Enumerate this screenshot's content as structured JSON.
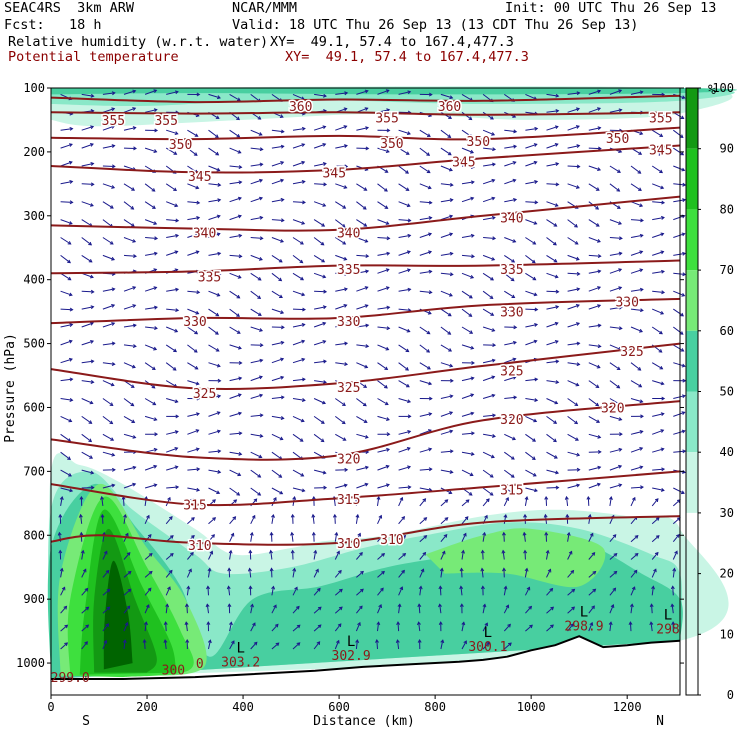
{
  "header": {
    "model": "SEAC4RS  3km ARW",
    "center": "NCAR/MMM",
    "init": "Init: 00 UTC Thu 26 Sep 13",
    "fcst": "Fcst:   18 h",
    "valid": "Valid: 18 UTC Thu 26 Sep 13 (13 CDT Thu 26 Sep 13)",
    "field1_name": "Relative humidity (w.r.t. water)",
    "field1_xy": "XY=  49.1, 57.4 to 167.4,477.3",
    "field2_name": "Potential temperature",
    "field2_xy": "XY=  49.1, 57.4 to 167.4,477.3"
  },
  "colors": {
    "theta_contour": "#8b1a1a",
    "wind_vector": "#1a1a8c",
    "terrain": "#000000"
  },
  "chart_data": {
    "type": "cross-section",
    "xlabel": "Distance (km)",
    "ylabel": "Pressure (hPa)",
    "xlim": [
      0,
      1310
    ],
    "ylim": [
      1050,
      100
    ],
    "x_ticks": [
      0,
      200,
      400,
      600,
      800,
      1000,
      1200
    ],
    "y_ticks": [
      100,
      200,
      300,
      400,
      500,
      600,
      700,
      800,
      900,
      1000
    ],
    "left_end_label": "S",
    "right_end_label": "N",
    "colorbar": {
      "unit": "%",
      "ticks": [
        100,
        90,
        80,
        70,
        60,
        50,
        40,
        30,
        20,
        10,
        0
      ],
      "levels": [
        100,
        90,
        80,
        70,
        60,
        50,
        40,
        30
      ],
      "colors": [
        "#006400",
        "#139913",
        "#1fc11f",
        "#3ee03e",
        "#77ea77",
        "#48cfa0",
        "#8ae8c8",
        "#c9f5e5"
      ]
    },
    "theta_isolines": [
      {
        "theta": 360,
        "points": [
          [
            0,
            115
          ],
          [
            300,
            122
          ],
          [
            600,
            118
          ],
          [
            900,
            120
          ],
          [
            1310,
            112
          ]
        ]
      },
      {
        "theta": 355,
        "points": [
          [
            0,
            138
          ],
          [
            300,
            140
          ],
          [
            600,
            138
          ],
          [
            900,
            142
          ],
          [
            1310,
            138
          ]
        ]
      },
      {
        "theta": 350,
        "points": [
          [
            0,
            178
          ],
          [
            300,
            180
          ],
          [
            600,
            175
          ],
          [
            900,
            180
          ],
          [
            1310,
            162
          ]
        ]
      },
      {
        "theta": 345,
        "points": [
          [
            0,
            222
          ],
          [
            300,
            232
          ],
          [
            600,
            228
          ],
          [
            900,
            210
          ],
          [
            1310,
            190
          ]
        ]
      },
      {
        "theta": 340,
        "points": [
          [
            0,
            315
          ],
          [
            300,
            320
          ],
          [
            600,
            322
          ],
          [
            900,
            300
          ],
          [
            1310,
            270
          ]
        ]
      },
      {
        "theta": 335,
        "points": [
          [
            0,
            390
          ],
          [
            300,
            387
          ],
          [
            600,
            378
          ],
          [
            900,
            378
          ],
          [
            1310,
            370
          ]
        ]
      },
      {
        "theta": 330,
        "points": [
          [
            0,
            468
          ],
          [
            300,
            460
          ],
          [
            600,
            460
          ],
          [
            900,
            440
          ],
          [
            1310,
            430
          ]
        ]
      },
      {
        "theta": 325,
        "points": [
          [
            0,
            540
          ],
          [
            300,
            570
          ],
          [
            600,
            562
          ],
          [
            900,
            535
          ],
          [
            1310,
            500
          ]
        ]
      },
      {
        "theta": 320,
        "points": [
          [
            0,
            650
          ],
          [
            300,
            678
          ],
          [
            600,
            675
          ],
          [
            900,
            620
          ],
          [
            1310,
            590
          ]
        ]
      },
      {
        "theta": 315,
        "points": [
          [
            0,
            720
          ],
          [
            300,
            752
          ],
          [
            600,
            742
          ],
          [
            900,
            725
          ],
          [
            1310,
            700
          ]
        ]
      },
      {
        "theta": 310,
        "points": [
          [
            0,
            810
          ],
          [
            100,
            800
          ],
          [
            300,
            812
          ],
          [
            600,
            812
          ],
          [
            900,
            780
          ],
          [
            1310,
            770
          ]
        ]
      }
    ],
    "isoline_labels": [
      {
        "text": "360",
        "x": 520,
        "y": 128
      },
      {
        "text": "360",
        "x": 830,
        "y": 128
      },
      {
        "text": "355",
        "x": 130,
        "y": 150
      },
      {
        "text": "355",
        "x": 240,
        "y": 150
      },
      {
        "text": "355",
        "x": 700,
        "y": 146
      },
      {
        "text": "355",
        "x": 1270,
        "y": 146
      },
      {
        "text": "350",
        "x": 270,
        "y": 188
      },
      {
        "text": "350",
        "x": 710,
        "y": 186
      },
      {
        "text": "350",
        "x": 890,
        "y": 183
      },
      {
        "text": "350",
        "x": 1180,
        "y": 178
      },
      {
        "text": "345",
        "x": 1270,
        "y": 196
      },
      {
        "text": "345",
        "x": 860,
        "y": 215
      },
      {
        "text": "345",
        "x": 310,
        "y": 238
      },
      {
        "text": "345",
        "x": 590,
        "y": 232
      },
      {
        "text": "340",
        "x": 320,
        "y": 326
      },
      {
        "text": "340",
        "x": 620,
        "y": 326
      },
      {
        "text": "340",
        "x": 960,
        "y": 303
      },
      {
        "text": "335",
        "x": 330,
        "y": 395
      },
      {
        "text": "335",
        "x": 620,
        "y": 383
      },
      {
        "text": "335",
        "x": 960,
        "y": 383
      },
      {
        "text": "330",
        "x": 1200,
        "y": 434
      },
      {
        "text": "330",
        "x": 300,
        "y": 465
      },
      {
        "text": "330",
        "x": 620,
        "y": 465
      },
      {
        "text": "330",
        "x": 960,
        "y": 450
      },
      {
        "text": "325",
        "x": 1210,
        "y": 512
      },
      {
        "text": "325",
        "x": 960,
        "y": 542
      },
      {
        "text": "325",
        "x": 320,
        "y": 577
      },
      {
        "text": "325",
        "x": 620,
        "y": 568
      },
      {
        "text": "320",
        "x": 1170,
        "y": 600
      },
      {
        "text": "320",
        "x": 960,
        "y": 618
      },
      {
        "text": "320",
        "x": 620,
        "y": 680
      },
      {
        "text": "315",
        "x": 960,
        "y": 728
      },
      {
        "text": "315",
        "x": 620,
        "y": 743
      },
      {
        "text": "315",
        "x": 300,
        "y": 752
      },
      {
        "text": "310",
        "x": 310,
        "y": 815
      },
      {
        "text": "310",
        "x": 620,
        "y": 812
      },
      {
        "text": "310",
        "x": 710,
        "y": 806
      }
    ],
    "surface_lows": [
      {
        "letter": "L",
        "value": "303.2",
        "x": 395
      },
      {
        "letter": "L",
        "value": "302.9",
        "x": 625
      },
      {
        "letter": "L",
        "value": "300.1",
        "x": 910
      },
      {
        "letter": "L",
        "value": "298.9",
        "x": 1110
      },
      {
        "letter": "L",
        "value": "298",
        "x": 1285
      }
    ],
    "surface_labels": [
      {
        "text": "299.0",
        "x": 40,
        "y": 1030
      },
      {
        "text": "300",
        "x": 255,
        "y": 1018
      },
      {
        "text": "0",
        "x": 310,
        "y": 1008
      }
    ],
    "terrain_pressure": [
      [
        0,
        1025
      ],
      [
        150,
        1025
      ],
      [
        300,
        1022
      ],
      [
        400,
        1018
      ],
      [
        550,
        1012
      ],
      [
        650,
        1006
      ],
      [
        750,
        1002
      ],
      [
        850,
        998
      ],
      [
        900,
        995
      ],
      [
        950,
        990
      ],
      [
        1000,
        980
      ],
      [
        1050,
        972
      ],
      [
        1100,
        958
      ],
      [
        1150,
        975
      ],
      [
        1200,
        972
      ],
      [
        1250,
        968
      ],
      [
        1310,
        965
      ]
    ]
  }
}
